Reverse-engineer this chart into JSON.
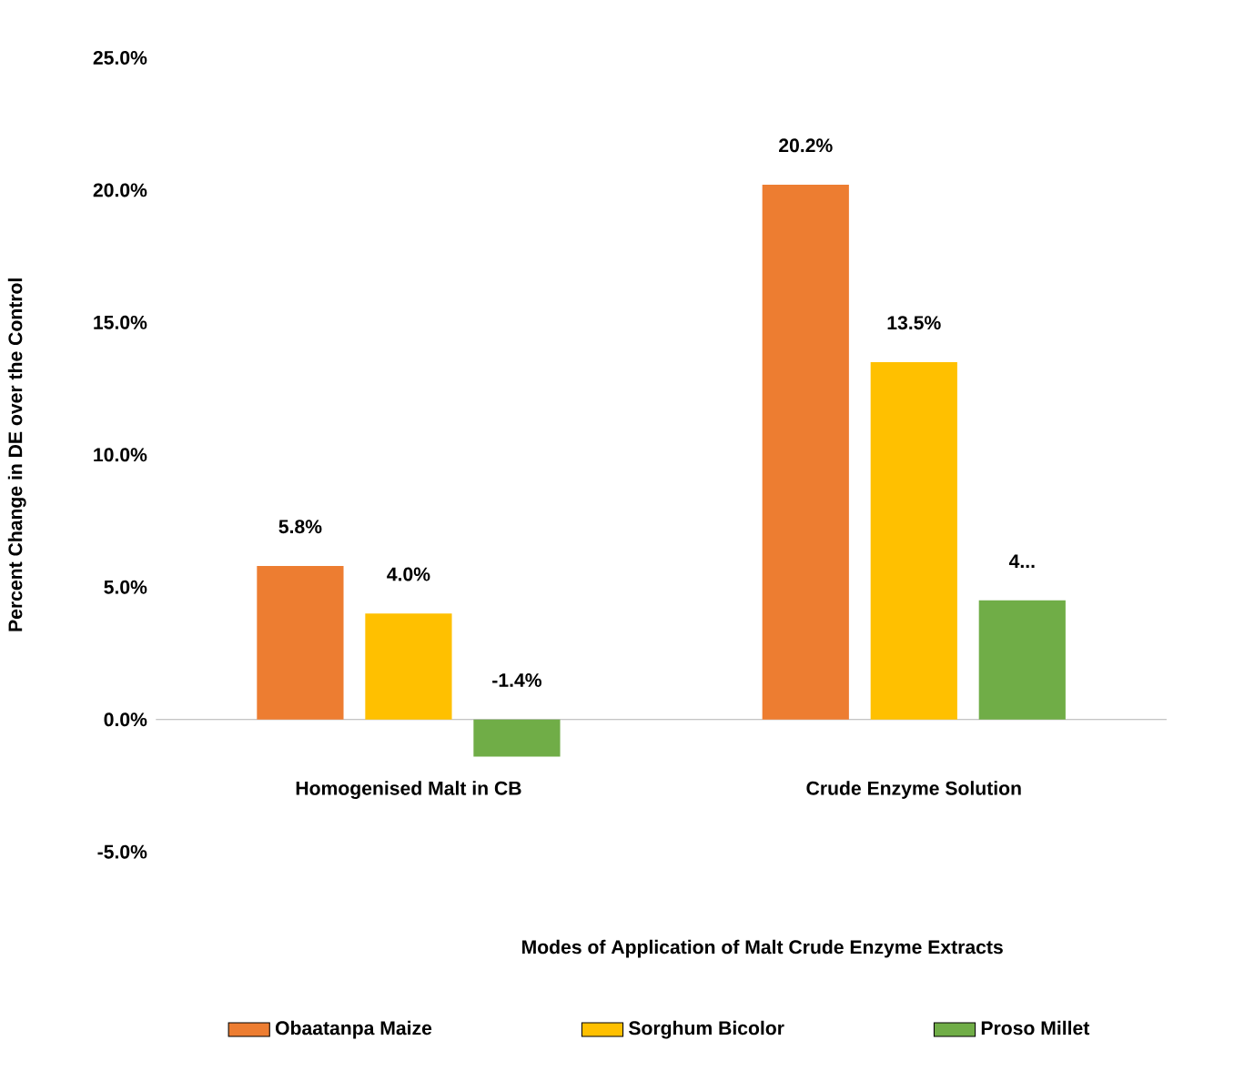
{
  "chart_data": {
    "type": "bar",
    "xlabel": "Modes of Application of Malt Crude Enzyme Extracts",
    "ylabel": "Percent Change in DE over the Control",
    "categories": [
      "Homogenised Malt in CB",
      "Crude Enzyme Solution"
    ],
    "series": [
      {
        "name": "Obaatanpa Maize",
        "color": "#ed7d31",
        "values": [
          5.8,
          20.2
        ],
        "value_labels": [
          "5.8%",
          "20.2%"
        ]
      },
      {
        "name": "Sorghum Bicolor",
        "color": "#ffc000",
        "values": [
          4.0,
          13.5
        ],
        "value_labels": [
          "4.0%",
          "13.5%"
        ]
      },
      {
        "name": "Proso Millet",
        "color": "#70ad47",
        "values": [
          -1.4,
          4.5
        ],
        "value_labels": [
          "-1.4%",
          "4..."
        ]
      }
    ],
    "ylim": [
      -5,
      25
    ],
    "yticks": [
      {
        "value": -5,
        "label": "-5.0%"
      },
      {
        "value": 0,
        "label": "0.0%"
      },
      {
        "value": 5,
        "label": "5.0%"
      },
      {
        "value": 10,
        "label": "10.0%"
      },
      {
        "value": 15,
        "label": "15.0%"
      },
      {
        "value": 20,
        "label": "20.0%"
      },
      {
        "value": 25,
        "label": "25.0%"
      }
    ],
    "legend": "bottom"
  }
}
